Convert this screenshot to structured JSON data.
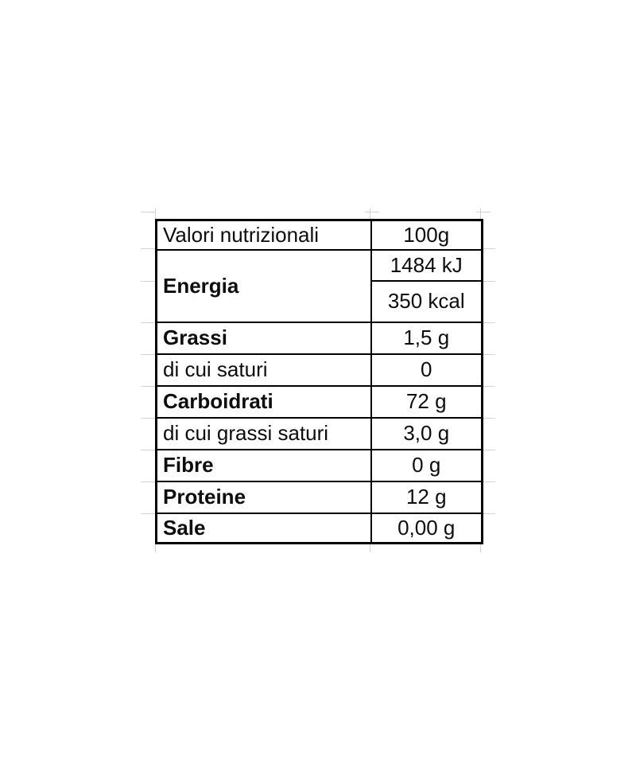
{
  "colors": {
    "background": "#ffffff",
    "border": "#000000",
    "text": "#0d0d0d",
    "gridline": "#d3d3d3"
  },
  "nutrition_table": {
    "header": {
      "label": "Valori nutrizionali",
      "amount": "100g"
    },
    "energia": {
      "label": "Energia",
      "kj": "1484 kJ",
      "kcal": "350 kcal"
    },
    "rows": [
      {
        "label": "Grassi",
        "value": "1,5 g"
      },
      {
        "label": "di cui saturi",
        "value": "0"
      },
      {
        "label": "Carboidrati",
        "value": "72 g"
      },
      {
        "label": "di cui grassi saturi",
        "value": "3,0 g"
      },
      {
        "label": "Fibre",
        "value": "0 g"
      },
      {
        "label": "Proteine",
        "value": "12 g"
      },
      {
        "label": "Sale",
        "value": "0,00 g"
      }
    ]
  }
}
